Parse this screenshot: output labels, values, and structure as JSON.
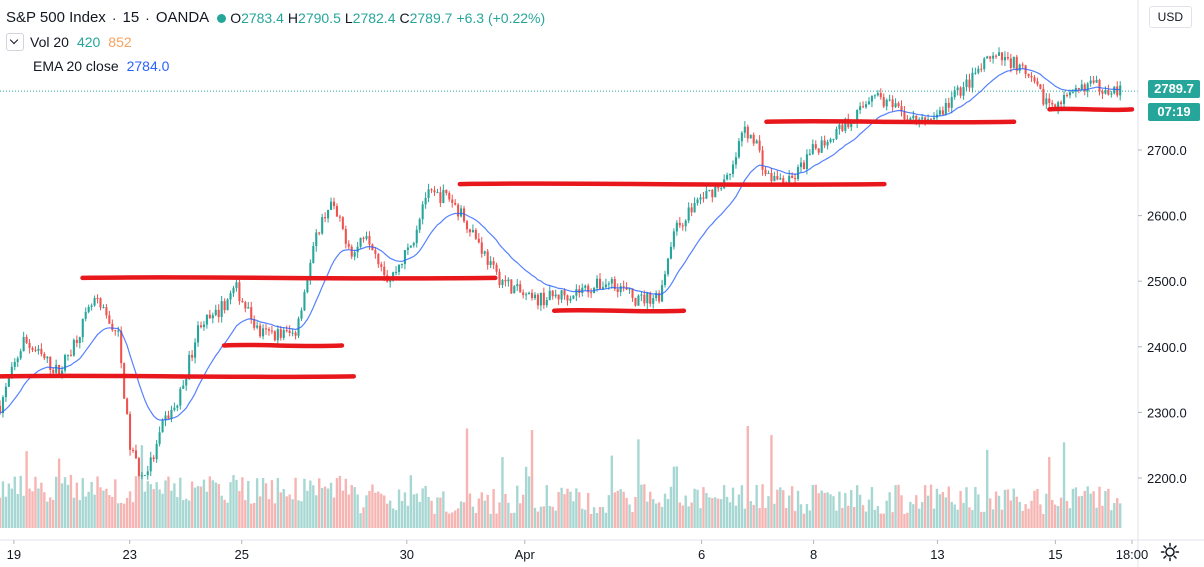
{
  "header": {
    "symbol_title": "S&P 500 Index",
    "interval": "15",
    "exchange": "OANDA",
    "open_label": "O",
    "open_value": "2783.4",
    "high_label": "H",
    "high_value": "2790.5",
    "low_label": "L",
    "low_value": "2782.4",
    "close_label": "C",
    "close_value": "2789.7",
    "change": "+6.3 (+0.22%)",
    "currency_button": "USD"
  },
  "indicators": {
    "volume_name": "Vol 20",
    "volume_value": "420",
    "volume_ma": "852",
    "ema_name": "EMA 20 close",
    "ema_value": "2784.0"
  },
  "price_scale": {
    "current_price": "2789.7",
    "countdown": "07:19"
  },
  "colors": {
    "up": "#26a69a",
    "down": "#ef5350",
    "ema": "#2962ff",
    "annotation": "#e8171c",
    "volume_up": "#a7d7d2",
    "volume_down": "#f6b4b2"
  },
  "chart_data": {
    "type": "candlestick",
    "symbol": "S&P 500 Index",
    "interval": "15",
    "y_ticks": [
      2200,
      2300,
      2400,
      2500,
      2600,
      2700
    ],
    "y_tick_labels": [
      "2200.0",
      "2300.0",
      "2400.0",
      "2500.0",
      "2600.0",
      "2700.0"
    ],
    "x_ticks": [
      "19",
      "23",
      "25",
      "30",
      "Apr",
      "6",
      "8",
      "13",
      "15",
      "18:00"
    ],
    "ylim": [
      2110,
      2875
    ],
    "price_path": [
      {
        "t": 0,
        "p": 2310
      },
      {
        "t": 2,
        "p": 2410
      },
      {
        "t": 5,
        "p": 2360
      },
      {
        "t": 8,
        "p": 2470
      },
      {
        "t": 10,
        "p": 2420
      },
      {
        "t": 11,
        "p": 2250
      },
      {
        "t": 12,
        "p": 2200
      },
      {
        "t": 13,
        "p": 2230
      },
      {
        "t": 14,
        "p": 2290
      },
      {
        "t": 15,
        "p": 2310
      },
      {
        "t": 17,
        "p": 2440
      },
      {
        "t": 18,
        "p": 2440
      },
      {
        "t": 20,
        "p": 2490
      },
      {
        "t": 22,
        "p": 2420
      },
      {
        "t": 25,
        "p": 2420
      },
      {
        "t": 27,
        "p": 2580
      },
      {
        "t": 28,
        "p": 2620
      },
      {
        "t": 30,
        "p": 2540
      },
      {
        "t": 31,
        "p": 2580
      },
      {
        "t": 33,
        "p": 2500
      },
      {
        "t": 35,
        "p": 2560
      },
      {
        "t": 36,
        "p": 2630
      },
      {
        "t": 38,
        "p": 2630
      },
      {
        "t": 40,
        "p": 2580
      },
      {
        "t": 42,
        "p": 2510
      },
      {
        "t": 45,
        "p": 2470
      },
      {
        "t": 48,
        "p": 2480
      },
      {
        "t": 52,
        "p": 2500
      },
      {
        "t": 54,
        "p": 2470
      },
      {
        "t": 56,
        "p": 2480
      },
      {
        "t": 57,
        "p": 2570
      },
      {
        "t": 59,
        "p": 2620
      },
      {
        "t": 62,
        "p": 2660
      },
      {
        "t": 63,
        "p": 2730
      },
      {
        "t": 64,
        "p": 2720
      },
      {
        "t": 65,
        "p": 2660
      },
      {
        "t": 67,
        "p": 2650
      },
      {
        "t": 69,
        "p": 2700
      },
      {
        "t": 71,
        "p": 2730
      },
      {
        "t": 73,
        "p": 2760
      },
      {
        "t": 74,
        "p": 2790
      },
      {
        "t": 76,
        "p": 2760
      },
      {
        "t": 78,
        "p": 2740
      },
      {
        "t": 80,
        "p": 2760
      },
      {
        "t": 81,
        "p": 2785
      },
      {
        "t": 82,
        "p": 2800
      },
      {
        "t": 84,
        "p": 2840
      },
      {
        "t": 86,
        "p": 2835
      },
      {
        "t": 88,
        "p": 2790
      },
      {
        "t": 89,
        "p": 2770
      },
      {
        "t": 91,
        "p": 2780
      },
      {
        "t": 92,
        "p": 2800
      },
      {
        "t": 94,
        "p": 2795
      },
      {
        "t": 95,
        "p": 2789.7
      }
    ],
    "annotations": [
      {
        "type": "horizontal_line",
        "from_t": 0,
        "to_t": 30,
        "level": 2355
      },
      {
        "type": "horizontal_line",
        "from_t": 7,
        "to_t": 42,
        "level": 2505
      },
      {
        "type": "horizontal_line",
        "from_t": 19,
        "to_t": 29,
        "level": 2402
      },
      {
        "type": "horizontal_line",
        "from_t": 39,
        "to_t": 75,
        "level": 2648
      },
      {
        "type": "horizontal_line",
        "from_t": 47,
        "to_t": 58,
        "level": 2455
      },
      {
        "type": "horizontal_line",
        "from_t": 65,
        "to_t": 86,
        "level": 2743
      },
      {
        "type": "horizontal_line",
        "from_t": 89,
        "to_t": 96,
        "level": 2762
      }
    ]
  }
}
